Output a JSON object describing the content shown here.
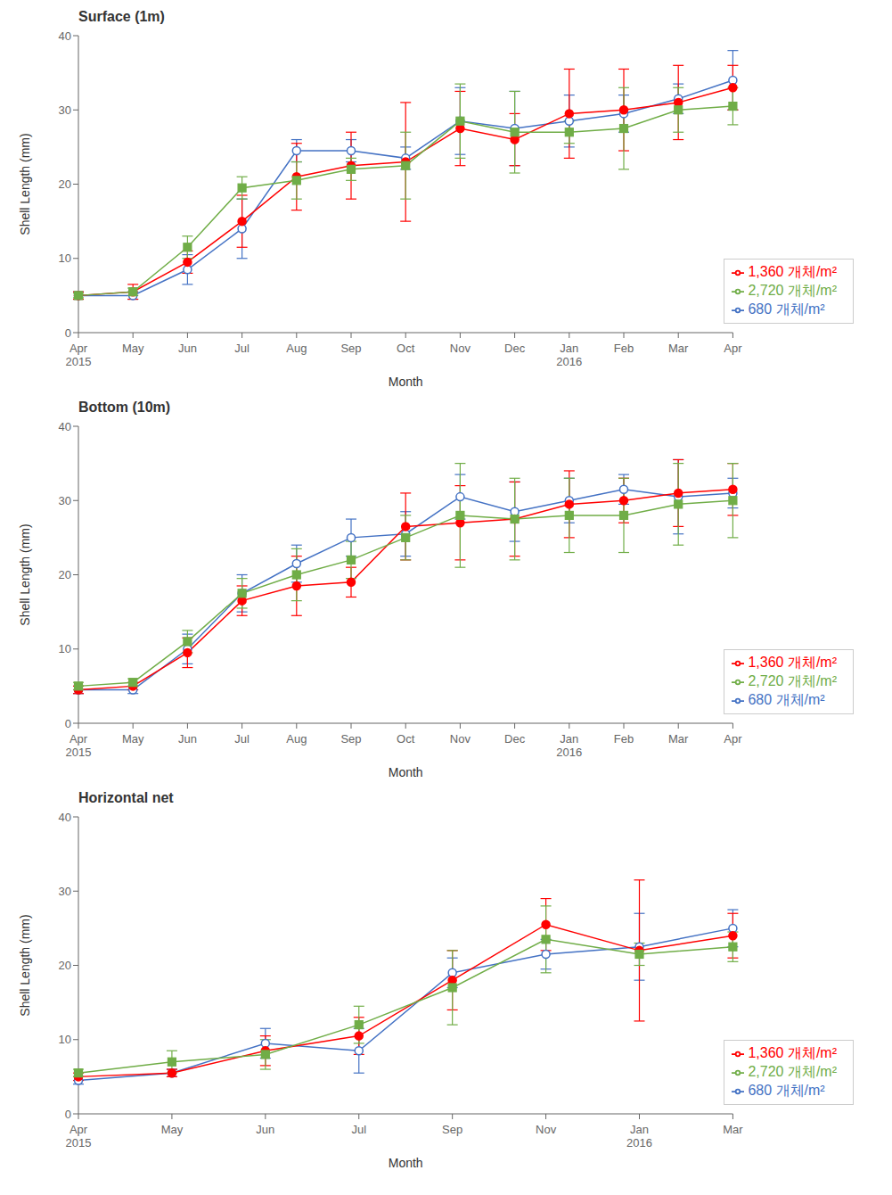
{
  "chart_data": [
    {
      "type": "line",
      "title": "Surface (1m)",
      "xlabel": "Month",
      "ylabel": "Shell Length (mm)",
      "ylim": [
        0,
        40
      ],
      "yticks": [
        0,
        10,
        20,
        30,
        40
      ],
      "grid": false,
      "legend": "lower right",
      "categories": [
        "Apr\n2015",
        "May",
        "Jun",
        "Jul",
        "Aug",
        "Sep",
        "Oct",
        "Nov",
        "Dec",
        "Jan\n2016",
        "Feb",
        "Mar",
        "Apr"
      ],
      "series": [
        {
          "name": "680 개체/m²",
          "color": "#4472C4",
          "marker": "open_circle",
          "values": [
            5.0,
            5.0,
            8.5,
            14.0,
            24.5,
            24.5,
            23.5,
            28.5,
            27.5,
            28.5,
            29.5,
            31.5,
            34.0
          ],
          "yerr": [
            0.5,
            0.5,
            2.0,
            4.0,
            1.5,
            1.5,
            1.5,
            4.5,
            5.0,
            3.5,
            2.5,
            2.0,
            4.0
          ]
        },
        {
          "name": "1,360 개체/m²",
          "color": "#FF0000",
          "marker": "circle",
          "values": [
            5.0,
            5.5,
            9.5,
            15.0,
            21.0,
            22.5,
            23.0,
            27.5,
            26.0,
            29.5,
            30.0,
            31.0,
            33.0
          ],
          "yerr": [
            0.5,
            1.0,
            1.5,
            3.5,
            4.5,
            4.5,
            8.0,
            5.0,
            3.5,
            6.0,
            5.5,
            5.0,
            3.0
          ]
        },
        {
          "name": "2,720 개체/m²",
          "color": "#70AD47",
          "marker": "square",
          "values": [
            5.0,
            5.5,
            11.5,
            19.5,
            20.5,
            22.0,
            22.5,
            28.5,
            27.0,
            27.0,
            27.5,
            30.0,
            30.5
          ],
          "yerr": [
            0.3,
            0.5,
            1.5,
            1.5,
            2.5,
            1.5,
            4.5,
            5.0,
            5.5,
            1.5,
            5.5,
            3.0,
            2.5
          ]
        }
      ]
    },
    {
      "type": "line",
      "title": "Bottom (10m)",
      "xlabel": "Month",
      "ylabel": "Shell Length (mm)",
      "ylim": [
        0,
        40
      ],
      "yticks": [
        0,
        10,
        20,
        30,
        40
      ],
      "grid": false,
      "legend": "lower right",
      "categories": [
        "Apr\n2015",
        "May",
        "Jun",
        "Jul",
        "Aug",
        "Sep",
        "Oct",
        "Nov",
        "Dec",
        "Jan\n2016",
        "Feb",
        "Mar",
        "Apr"
      ],
      "series": [
        {
          "name": "680 개체/m²",
          "color": "#4472C4",
          "marker": "open_circle",
          "values": [
            4.5,
            4.5,
            10.0,
            17.5,
            21.5,
            25.0,
            25.5,
            30.5,
            28.5,
            30.0,
            31.5,
            30.5,
            31.0
          ],
          "yerr": [
            0.5,
            0.5,
            2.0,
            2.5,
            2.5,
            2.5,
            3.0,
            3.0,
            4.0,
            3.0,
            2.0,
            5.0,
            2.0
          ]
        },
        {
          "name": "1,360 개체/m²",
          "color": "#FF0000",
          "marker": "circle",
          "values": [
            4.5,
            5.0,
            9.5,
            16.5,
            18.5,
            19.0,
            26.5,
            27.0,
            27.5,
            29.5,
            30.0,
            31.0,
            31.5
          ],
          "yerr": [
            0.5,
            0.5,
            2.0,
            2.0,
            4.0,
            2.0,
            4.5,
            5.0,
            5.0,
            4.5,
            3.0,
            4.5,
            3.5
          ]
        },
        {
          "name": "2,720 개체/m²",
          "color": "#70AD47",
          "marker": "square",
          "values": [
            5.0,
            5.5,
            11.0,
            17.5,
            20.0,
            22.0,
            25.0,
            28.0,
            27.5,
            28.0,
            28.0,
            29.5,
            30.0
          ],
          "yerr": [
            0.5,
            0.5,
            1.5,
            2.0,
            3.5,
            2.5,
            3.0,
            7.0,
            5.5,
            5.0,
            5.0,
            5.5,
            5.0
          ]
        }
      ]
    },
    {
      "type": "line",
      "title": "Horizontal net",
      "xlabel": "Month",
      "ylabel": "Shell Length (mm)",
      "ylim": [
        0,
        40
      ],
      "yticks": [
        0,
        10,
        20,
        30,
        40
      ],
      "grid": false,
      "legend": "lower right",
      "categories": [
        "Apr\n2015",
        "May",
        "Jun",
        "Jul",
        "Sep",
        "Nov",
        "Jan\n2016",
        "Mar"
      ],
      "series": [
        {
          "name": "680 개체/m²",
          "color": "#4472C4",
          "marker": "open_circle",
          "values": [
            4.5,
            5.5,
            9.5,
            8.5,
            19.0,
            21.5,
            22.5,
            25.0
          ],
          "yerr": [
            0.5,
            0.5,
            2.0,
            3.0,
            2.0,
            2.0,
            4.5,
            2.5
          ]
        },
        {
          "name": "1,360 개체/m²",
          "color": "#FF0000",
          "marker": "circle",
          "values": [
            5.0,
            5.5,
            8.5,
            10.5,
            18.0,
            25.5,
            22.0,
            24.0
          ],
          "yerr": [
            0.5,
            0.5,
            2.0,
            2.5,
            4.0,
            3.5,
            9.5,
            3.0
          ]
        },
        {
          "name": "2,720 개체/m²",
          "color": "#70AD47",
          "marker": "square",
          "values": [
            5.5,
            7.0,
            8.0,
            12.0,
            17.0,
            23.5,
            21.5,
            22.5
          ],
          "yerr": [
            0.5,
            1.5,
            2.0,
            2.5,
            5.0,
            4.5,
            1.5,
            2.0
          ]
        }
      ]
    }
  ]
}
